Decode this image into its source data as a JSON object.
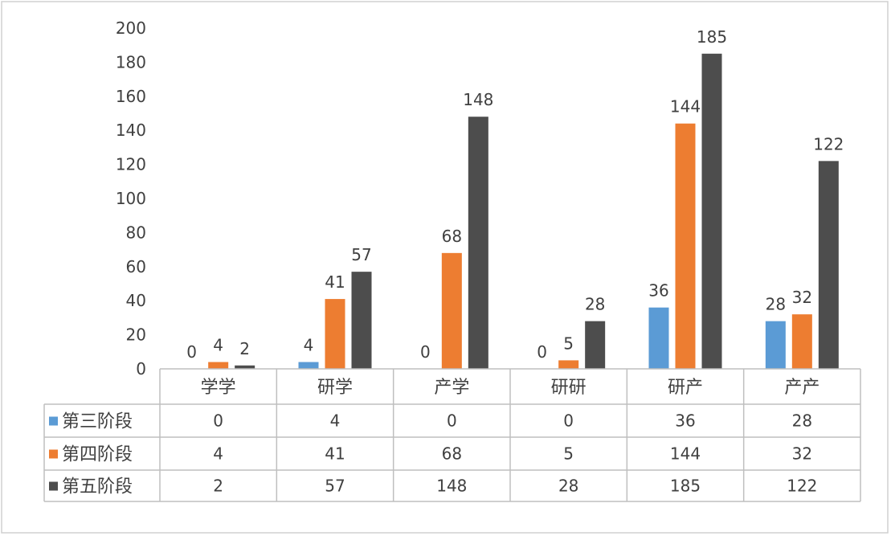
{
  "chart_data": {
    "type": "bar",
    "categories": [
      "学学",
      "研学",
      "产学",
      "研研",
      "研产",
      "产产"
    ],
    "series": [
      {
        "name": "第三阶段",
        "values": [
          0,
          4,
          0,
          0,
          36,
          28
        ],
        "color": "#5b9bd5"
      },
      {
        "name": "第四阶段",
        "values": [
          4,
          41,
          68,
          5,
          144,
          32
        ],
        "color": "#ed7d31"
      },
      {
        "name": "第五阶段",
        "values": [
          2,
          57,
          148,
          28,
          185,
          122
        ],
        "color": "#4d4d4d"
      }
    ],
    "yticks": [
      0,
      20,
      40,
      60,
      80,
      100,
      120,
      140,
      160,
      180,
      200
    ],
    "ylim": [
      0,
      200
    ],
    "data_labels": true,
    "data_table": true,
    "legend": "data-table-left",
    "grid": false
  }
}
